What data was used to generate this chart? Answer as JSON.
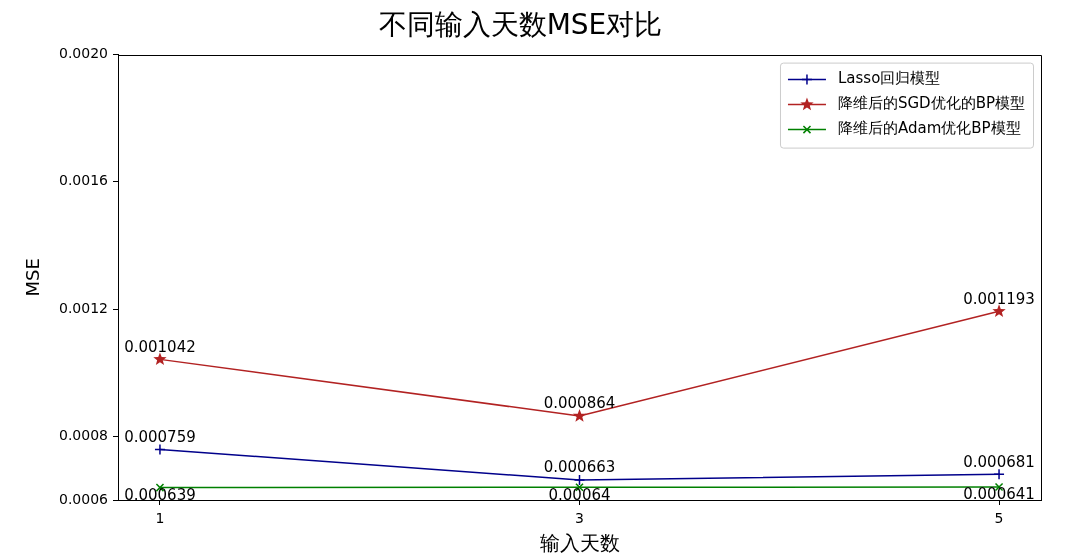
{
  "chart_data": {
    "type": "line",
    "title": "不同输入天数MSE对比",
    "xlabel": "输入天数",
    "ylabel": "MSE",
    "x": [
      1,
      3,
      5
    ],
    "xlim": [
      0.8,
      5.2
    ],
    "xticks": [
      1,
      3,
      5
    ],
    "ylim": [
      0.0006,
      0.002
    ],
    "yticks": [
      0.0006,
      0.0008,
      0.0012,
      0.0016,
      {
        "value": 0.002,
        "label": "0.0020"
      }
    ],
    "legend": "top right",
    "data_labels": true,
    "series": [
      {
        "name": "Lasso回归模型",
        "color": "#00008b",
        "marker": "plus",
        "values": [
          0.000759,
          0.000663,
          0.000681
        ]
      },
      {
        "name": "降维后的SGD优化的BP模型",
        "color": "#b22222",
        "marker": "star",
        "values": [
          0.001042,
          0.000864,
          0.001193
        ]
      },
      {
        "name": "降维后的Adam优化BP模型",
        "color": "#008000",
        "marker": "cross",
        "values": [
          0.000639,
          0.00064,
          0.000641
        ]
      }
    ]
  }
}
